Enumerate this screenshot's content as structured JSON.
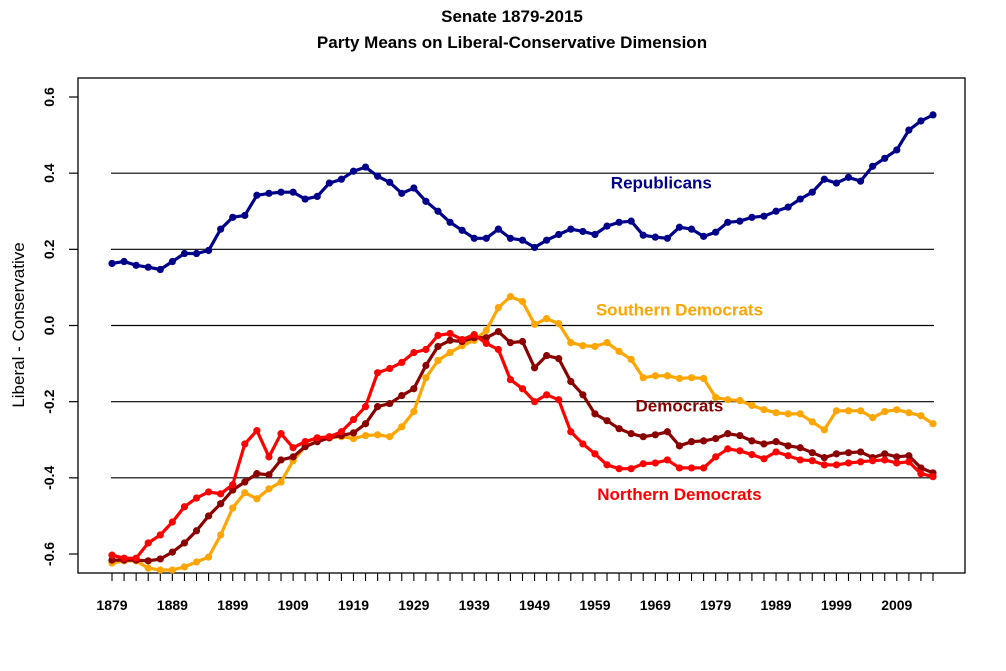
{
  "chart_data": {
    "type": "line",
    "title": "Senate 1879-2015",
    "subtitle": "Party Means on Liberal-Conservative Dimension",
    "xlabel": "",
    "ylabel": "Liberal - Conservative",
    "xlim": [
      1879,
      2015
    ],
    "ylim": [
      -0.65,
      0.65
    ],
    "x_tick_labels": [
      "1879",
      "1889",
      "1899",
      "1909",
      "1919",
      "1929",
      "1939",
      "1949",
      "1959",
      "1969",
      "1979",
      "1989",
      "1999",
      "2009"
    ],
    "x_tick_label_years": [
      1879,
      1889,
      1899,
      1909,
      1919,
      1929,
      1939,
      1949,
      1959,
      1969,
      1979,
      1989,
      1999,
      2009
    ],
    "x_minor_tick_step": 2,
    "y_ticks": [
      0.6,
      0.4,
      0.2,
      0.0,
      -0.2,
      -0.4,
      -0.6
    ],
    "y_tick_labels": [
      "0.6",
      "0.4",
      "0.2",
      "0.0",
      "-0.2",
      "-0.4",
      "-0.6"
    ],
    "gridlines": [
      0.4,
      0.2,
      0.0,
      -0.2,
      -0.4
    ],
    "grid": true,
    "legend": "inline-labels",
    "x": [
      1879,
      1881,
      1883,
      1885,
      1887,
      1889,
      1891,
      1893,
      1895,
      1897,
      1899,
      1901,
      1903,
      1905,
      1907,
      1909,
      1911,
      1913,
      1915,
      1917,
      1919,
      1921,
      1923,
      1925,
      1927,
      1929,
      1931,
      1933,
      1935,
      1937,
      1939,
      1941,
      1943,
      1945,
      1947,
      1949,
      1951,
      1953,
      1955,
      1957,
      1959,
      1961,
      1963,
      1965,
      1967,
      1969,
      1971,
      1973,
      1975,
      1977,
      1979,
      1981,
      1983,
      1985,
      1987,
      1989,
      1991,
      1993,
      1995,
      1997,
      1999,
      2001,
      2003,
      2005,
      2007,
      2009,
      2011,
      2013,
      2015
    ],
    "series": [
      {
        "name": "Republicans",
        "label": "Republicans",
        "color": "#00008B",
        "label_anchor": {
          "year": 1970,
          "value": 0.36
        },
        "values": [
          0.163,
          0.168,
          0.158,
          0.153,
          0.147,
          0.168,
          0.189,
          0.189,
          0.197,
          0.253,
          0.284,
          0.289,
          0.342,
          0.347,
          0.35,
          0.35,
          0.332,
          0.339,
          0.374,
          0.384,
          0.405,
          0.416,
          0.392,
          0.376,
          0.347,
          0.361,
          0.326,
          0.3,
          0.271,
          0.25,
          0.229,
          0.229,
          0.253,
          0.229,
          0.224,
          0.205,
          0.224,
          0.239,
          0.253,
          0.247,
          0.239,
          0.261,
          0.271,
          0.274,
          0.237,
          0.232,
          0.229,
          0.258,
          0.253,
          0.234,
          0.245,
          0.271,
          0.274,
          0.284,
          0.287,
          0.3,
          0.311,
          0.332,
          0.35,
          0.384,
          0.374,
          0.389,
          0.379,
          0.418,
          0.439,
          0.461,
          0.513,
          0.537,
          0.553
        ]
      },
      {
        "name": "Southern Democrats",
        "label": "Southern Democrats",
        "color": "#FFA500",
        "label_anchor": {
          "year": 1973,
          "value": 0.026
        },
        "values": [
          -0.624,
          -0.618,
          -0.618,
          -0.637,
          -0.642,
          -0.642,
          -0.634,
          -0.621,
          -0.608,
          -0.55,
          -0.479,
          -0.439,
          -0.455,
          -0.429,
          -0.411,
          -0.355,
          -0.318,
          -0.303,
          -0.295,
          -0.292,
          -0.297,
          -0.289,
          -0.287,
          -0.292,
          -0.266,
          -0.226,
          -0.137,
          -0.092,
          -0.071,
          -0.053,
          -0.039,
          -0.013,
          0.047,
          0.076,
          0.063,
          0.003,
          0.018,
          0.005,
          -0.045,
          -0.053,
          -0.055,
          -0.045,
          -0.068,
          -0.089,
          -0.137,
          -0.132,
          -0.132,
          -0.139,
          -0.137,
          -0.139,
          -0.189,
          -0.195,
          -0.197,
          -0.21,
          -0.221,
          -0.229,
          -0.232,
          -0.232,
          -0.253,
          -0.274,
          -0.224,
          -0.224,
          -0.224,
          -0.242,
          -0.226,
          -0.221,
          -0.229,
          -0.237,
          -0.258
        ]
      },
      {
        "name": "Democrats",
        "label": "Democrats",
        "color": "#8B0000",
        "label_anchor": {
          "year": 1973,
          "value": -0.226
        },
        "values": [
          -0.616,
          -0.616,
          -0.616,
          -0.618,
          -0.613,
          -0.595,
          -0.571,
          -0.539,
          -0.5,
          -0.468,
          -0.432,
          -0.411,
          -0.389,
          -0.392,
          -0.353,
          -0.345,
          -0.318,
          -0.305,
          -0.295,
          -0.289,
          -0.282,
          -0.258,
          -0.213,
          -0.205,
          -0.184,
          -0.166,
          -0.105,
          -0.055,
          -0.039,
          -0.042,
          -0.032,
          -0.032,
          -0.016,
          -0.045,
          -0.042,
          -0.111,
          -0.079,
          -0.087,
          -0.147,
          -0.182,
          -0.232,
          -0.25,
          -0.271,
          -0.284,
          -0.292,
          -0.287,
          -0.279,
          -0.316,
          -0.305,
          -0.303,
          -0.297,
          -0.284,
          -0.289,
          -0.303,
          -0.311,
          -0.305,
          -0.316,
          -0.321,
          -0.334,
          -0.347,
          -0.337,
          -0.334,
          -0.332,
          -0.347,
          -0.337,
          -0.345,
          -0.342,
          -0.374,
          -0.387
        ]
      },
      {
        "name": "Northern Democrats",
        "label": "Northern Democrats",
        "color": "#FF0000",
        "label_anchor": {
          "year": 1973,
          "value": -0.458
        },
        "values": [
          -0.603,
          -0.611,
          -0.611,
          -0.571,
          -0.55,
          -0.516,
          -0.476,
          -0.453,
          -0.437,
          -0.442,
          -0.418,
          -0.311,
          -0.276,
          -0.345,
          -0.284,
          -0.321,
          -0.305,
          -0.295,
          -0.292,
          -0.279,
          -0.247,
          -0.213,
          -0.124,
          -0.113,
          -0.097,
          -0.071,
          -0.063,
          -0.026,
          -0.021,
          -0.037,
          -0.024,
          -0.047,
          -0.063,
          -0.142,
          -0.166,
          -0.2,
          -0.182,
          -0.195,
          -0.279,
          -0.311,
          -0.337,
          -0.366,
          -0.376,
          -0.376,
          -0.363,
          -0.361,
          -0.353,
          -0.374,
          -0.374,
          -0.374,
          -0.345,
          -0.324,
          -0.329,
          -0.339,
          -0.35,
          -0.332,
          -0.342,
          -0.353,
          -0.355,
          -0.366,
          -0.366,
          -0.361,
          -0.358,
          -0.355,
          -0.353,
          -0.361,
          -0.358,
          -0.389,
          -0.397
        ]
      }
    ]
  }
}
